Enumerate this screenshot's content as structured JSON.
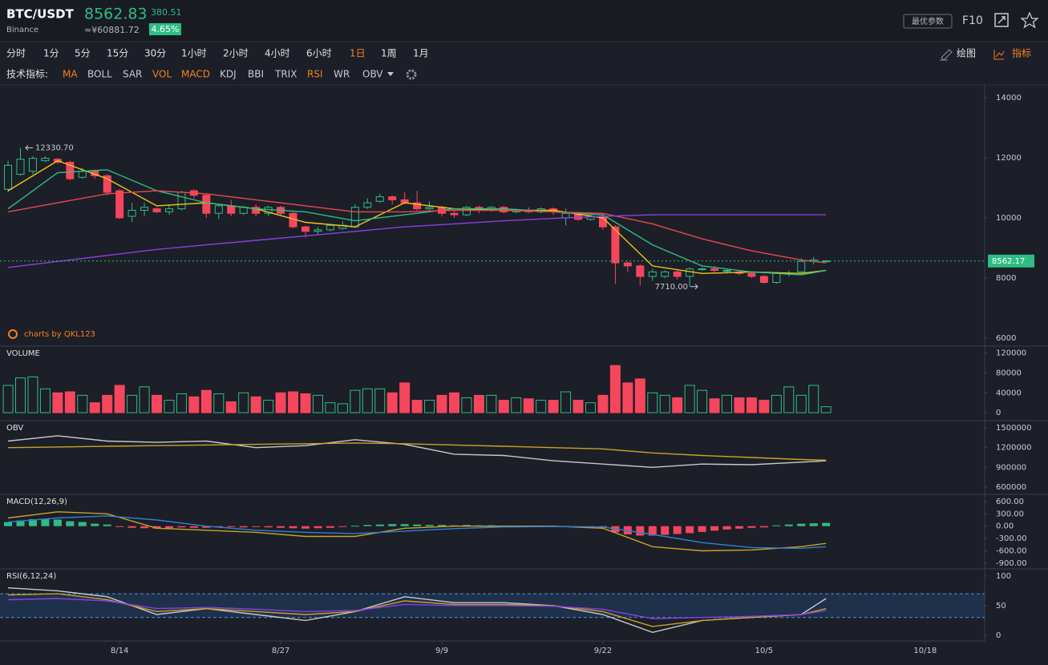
{
  "header": {
    "symbol": "BTC/USDT",
    "exchange": "Binance",
    "price": "8562.83",
    "change": "380.51",
    "cny": "≈¥60881.72",
    "change_pct": "4.65%",
    "params_button": "最优参数",
    "f10": "F10"
  },
  "intervals": {
    "items": [
      "分时",
      "1分",
      "5分",
      "15分",
      "30分",
      "1小时",
      "2小时",
      "4小时",
      "6小时",
      "1日",
      "1周",
      "1月"
    ],
    "active": 9,
    "draw": "绘图",
    "indicator": "指标"
  },
  "indicators": {
    "label": "技术指标:",
    "items": [
      "MA",
      "BOLL",
      "SAR",
      "VOL",
      "MACD",
      "KDJ",
      "BBI",
      "TRIX",
      "RSI",
      "WR",
      "OBV"
    ],
    "active": [
      0,
      3,
      4,
      8
    ]
  },
  "watermark": "charts by QKL123",
  "chart_data": [
    {
      "type": "candlestick",
      "up_color": "#2ebd85",
      "down_color": "#f6465d",
      "x": [
        0,
        1,
        2,
        3,
        4,
        5,
        6,
        7,
        8,
        9,
        10,
        11,
        12,
        13,
        14,
        15,
        16,
        17,
        18,
        19,
        20,
        21,
        22,
        23,
        24,
        25,
        26,
        27,
        28,
        29,
        30,
        31,
        32,
        33,
        34,
        35,
        36,
        37,
        38,
        39,
        40,
        41,
        42,
        43,
        44,
        45,
        46,
        47,
        48,
        49,
        50,
        51,
        52,
        53,
        54,
        55,
        56,
        57,
        58,
        59,
        60,
        61,
        62,
        63,
        64,
        65,
        66
      ],
      "open": [
        10950,
        11450,
        11550,
        11900,
        11950,
        11850,
        11350,
        11550,
        11400,
        10900,
        10050,
        10250,
        10300,
        10200,
        10300,
        10900,
        10750,
        10150,
        10400,
        10150,
        10350,
        10150,
        10350,
        10150,
        9700,
        9550,
        9600,
        9650,
        9700,
        10350,
        10550,
        10700,
        10600,
        10500,
        10300,
        10350,
        10150,
        10100,
        10350,
        10250,
        10350,
        10200,
        10250,
        10200,
        10300,
        10000,
        10150,
        9950,
        10050,
        9700,
        8500,
        8400,
        8050,
        8050,
        8200,
        8050,
        8300,
        8300,
        8250,
        8200,
        8150,
        8050,
        7850,
        8150,
        8200,
        8550,
        8560
      ],
      "high": [
        11900,
        12330.7,
        12050,
        12050,
        12000,
        11900,
        11650,
        11600,
        11450,
        10950,
        10500,
        10500,
        10350,
        10450,
        10900,
        10950,
        10800,
        10450,
        10600,
        10400,
        10450,
        10400,
        10400,
        10200,
        9750,
        9700,
        9800,
        9900,
        10450,
        10650,
        10800,
        10750,
        10850,
        10900,
        10550,
        10400,
        10250,
        10400,
        10400,
        10400,
        10400,
        10300,
        10350,
        10350,
        10350,
        10300,
        10200,
        10100,
        10100,
        9750,
        8550,
        8450,
        8300,
        8250,
        8250,
        8350,
        8350,
        8400,
        8300,
        8250,
        8200,
        8100,
        8200,
        8250,
        8650,
        8700,
        8600
      ],
      "low": [
        10850,
        11400,
        11450,
        11850,
        11800,
        11250,
        11300,
        11300,
        10750,
        9950,
        9850,
        10050,
        10150,
        10100,
        10250,
        10650,
        10000,
        9950,
        10050,
        10100,
        10050,
        10050,
        10100,
        9650,
        9350,
        9450,
        9550,
        9600,
        9650,
        10300,
        10500,
        10450,
        10450,
        10250,
        10250,
        10050,
        10000,
        10050,
        10150,
        10200,
        10150,
        10150,
        10150,
        10150,
        10100,
        9750,
        9900,
        9900,
        9600,
        7800,
        8200,
        7750,
        7900,
        8000,
        7950,
        7710,
        8250,
        8150,
        8150,
        8100,
        8000,
        7800,
        7800,
        8050,
        8150,
        8450,
        8530
      ],
      "close": [
        11750,
        11950,
        11980,
        11980,
        11850,
        11300,
        11550,
        11400,
        10850,
        10000,
        10250,
        10350,
        10200,
        10300,
        10850,
        10750,
        10150,
        10400,
        10150,
        10350,
        10150,
        10350,
        10150,
        9700,
        9550,
        9600,
        9750,
        9750,
        10350,
        10500,
        10700,
        10600,
        10500,
        10300,
        10350,
        10150,
        10100,
        10350,
        10250,
        10350,
        10200,
        10250,
        10200,
        10300,
        10200,
        10150,
        9950,
        10050,
        9700,
        8500,
        8400,
        8050,
        8200,
        8200,
        8050,
        8300,
        8300,
        8250,
        8250,
        8150,
        8050,
        7850,
        8150,
        8150,
        8550,
        8600,
        8565
      ],
      "lines": {
        "x": [
          0,
          4,
          8,
          12,
          16,
          20,
          24,
          28,
          32,
          36,
          40,
          44,
          48,
          52,
          56,
          60,
          64,
          66
        ],
        "series": [
          {
            "color": "#f0c419",
            "values": [
              10900,
              11900,
              11300,
              10400,
              10500,
              10300,
              9850,
              9700,
              10500,
              10300,
              10250,
              10250,
              10000,
              8400,
              8150,
              8200,
              8150,
              8250
            ]
          },
          {
            "color": "#2ebd85",
            "values": [
              10300,
              11500,
              11600,
              10900,
              10500,
              10300,
              10200,
              9900,
              10100,
              10300,
              10300,
              10200,
              10100,
              9100,
              8400,
              8200,
              8100,
              8250
            ]
          },
          {
            "color": "#e8484f",
            "values": [
              10200,
              10500,
              10800,
              10900,
              10800,
              10600,
              10400,
              10200,
              10200,
              10250,
              10250,
              10200,
              10150,
              9800,
              9300,
              8900,
              8600,
              8500
            ]
          },
          {
            "color": "#8b3fe6",
            "values": [
              8350,
              8550,
              8750,
              8950,
              9100,
              9250,
              9400,
              9550,
              9700,
              9800,
              9900,
              9980,
              10050,
              10100,
              10100,
              10100,
              10100,
              10100
            ]
          }
        ]
      },
      "annotations": [
        {
          "value": 12330.7,
          "label": "12330.70"
        },
        {
          "value": 7710,
          "label": "7710.00"
        }
      ],
      "last": 8562.17,
      "last_color": "#2ebd85",
      "ylim": [
        5730,
        14370
      ],
      "yticks": [
        6000,
        8000,
        10000,
        12000,
        14000
      ]
    },
    {
      "type": "bar",
      "title": "VOLUME",
      "x": [
        0,
        1,
        2,
        3,
        4,
        5,
        6,
        7,
        8,
        9,
        10,
        11,
        12,
        13,
        14,
        15,
        16,
        17,
        18,
        19,
        20,
        21,
        22,
        23,
        24,
        25,
        26,
        27,
        28,
        29,
        30,
        31,
        32,
        33,
        34,
        35,
        36,
        37,
        38,
        39,
        40,
        41,
        42,
        43,
        44,
        45,
        46,
        47,
        48,
        49,
        50,
        51,
        52,
        53,
        54,
        55,
        56,
        57,
        58,
        59,
        60,
        61,
        62,
        63,
        64,
        65,
        66
      ],
      "values": [
        55000,
        70000,
        72000,
        48000,
        40000,
        42000,
        35000,
        20000,
        35000,
        55000,
        35000,
        52000,
        35000,
        25000,
        38000,
        32000,
        45000,
        38000,
        22000,
        40000,
        32000,
        25000,
        40000,
        42000,
        38000,
        35000,
        20000,
        18000,
        45000,
        48000,
        48000,
        40000,
        60000,
        25000,
        25000,
        35000,
        40000,
        30000,
        35000,
        35000,
        25000,
        30000,
        28000,
        25000,
        25000,
        42000,
        25000,
        20000,
        35000,
        95000,
        60000,
        68000,
        40000,
        35000,
        30000,
        55000,
        45000,
        28000,
        35000,
        30000,
        30000,
        25000,
        35000,
        52000,
        35000,
        55000,
        12000
      ],
      "ylim": [
        -16000,
        134000
      ],
      "yticks": [
        0,
        40000,
        80000,
        120000
      ]
    },
    {
      "type": "line",
      "title": "OBV",
      "x": [
        0,
        4,
        8,
        12,
        16,
        20,
        24,
        28,
        32,
        36,
        40,
        44,
        48,
        52,
        56,
        60,
        64,
        66
      ],
      "series": [
        {
          "color": "#c8c8c8",
          "values": [
            1300000,
            1380000,
            1300000,
            1280000,
            1300000,
            1200000,
            1230000,
            1320000,
            1250000,
            1100000,
            1080000,
            1000000,
            950000,
            900000,
            950000,
            940000,
            980000,
            1000000
          ]
        },
        {
          "color": "#c9a227",
          "values": [
            1200000,
            1210000,
            1220000,
            1230000,
            1240000,
            1250000,
            1260000,
            1270000,
            1260000,
            1240000,
            1220000,
            1200000,
            1180000,
            1120000,
            1080000,
            1050000,
            1020000,
            1010000
          ]
        }
      ],
      "ylim": [
        490000,
        1610000
      ],
      "yticks": [
        600000,
        900000,
        1200000,
        1500000
      ]
    },
    {
      "type": "macd",
      "title": "MACD(12,26,9)",
      "x": [
        0,
        4,
        8,
        12,
        16,
        20,
        24,
        28,
        32,
        36,
        40,
        44,
        48,
        52,
        56,
        60,
        64,
        66
      ],
      "series": [
        {
          "color": "#c9a227",
          "values": [
            200,
            350,
            300,
            -50,
            -100,
            -150,
            -250,
            -250,
            -50,
            0,
            0,
            0,
            -50,
            -500,
            -600,
            -580,
            -500,
            -420
          ]
        },
        {
          "color": "#2f7fd8",
          "values": [
            100,
            200,
            250,
            150,
            0,
            -100,
            -150,
            -180,
            -120,
            -60,
            -20,
            -10,
            -20,
            -200,
            -400,
            -520,
            -540,
            -500
          ]
        }
      ],
      "histogram": {
        "x": [
          0,
          1,
          2,
          3,
          4,
          5,
          6,
          7,
          8,
          9,
          10,
          11,
          12,
          13,
          14,
          15,
          16,
          17,
          18,
          19,
          20,
          21,
          22,
          23,
          24,
          25,
          26,
          27,
          28,
          29,
          30,
          31,
          32,
          33,
          34,
          35,
          36,
          37,
          38,
          39,
          40,
          41,
          42,
          43,
          44,
          45,
          46,
          47,
          48,
          49,
          50,
          51,
          52,
          53,
          54,
          55,
          56,
          57,
          58,
          59,
          60,
          61,
          62,
          63,
          64,
          65,
          66
        ],
        "values": [
          100,
          140,
          170,
          180,
          160,
          120,
          100,
          60,
          40,
          -20,
          -40,
          -50,
          -60,
          -50,
          -30,
          -40,
          -40,
          -30,
          -20,
          -30,
          -20,
          -30,
          -40,
          -50,
          -60,
          -50,
          -40,
          -20,
          10,
          30,
          40,
          50,
          50,
          40,
          30,
          30,
          20,
          30,
          20,
          20,
          10,
          10,
          10,
          10,
          10,
          5,
          -10,
          -20,
          -40,
          -150,
          -200,
          -230,
          -230,
          -210,
          -190,
          -170,
          -140,
          -110,
          -80,
          -60,
          -40,
          -30,
          20,
          40,
          60,
          70,
          80
        ]
      },
      "ylim": [
        -1040,
        775
      ],
      "yticks": [
        {
          "value": 600,
          "label": "600.00"
        },
        {
          "value": 300,
          "label": "300.00"
        },
        {
          "value": 0,
          "label": "0.00"
        },
        {
          "value": -300,
          "label": "-300.00"
        },
        {
          "value": -600,
          "label": "-600.00"
        },
        {
          "value": -900,
          "label": "-900.00"
        }
      ]
    },
    {
      "type": "line",
      "title": "RSI(6,12,24)",
      "x": [
        0,
        4,
        8,
        12,
        16,
        20,
        24,
        28,
        32,
        36,
        40,
        44,
        48,
        52,
        56,
        60,
        64,
        66
      ],
      "series": [
        {
          "color": "#c8c8c8",
          "values": [
            80,
            75,
            65,
            35,
            45,
            35,
            25,
            40,
            65,
            55,
            55,
            50,
            35,
            5,
            25,
            30,
            35,
            62
          ]
        },
        {
          "color": "#c9a227",
          "values": [
            68,
            70,
            60,
            40,
            45,
            40,
            35,
            40,
            58,
            52,
            52,
            50,
            40,
            15,
            25,
            30,
            35,
            45
          ]
        },
        {
          "color": "#8b3fe6",
          "values": [
            60,
            62,
            58,
            45,
            47,
            44,
            40,
            42,
            52,
            50,
            50,
            49,
            44,
            28,
            30,
            32,
            35,
            42
          ]
        }
      ],
      "band": [
        30,
        70
      ],
      "ylim": [
        -9.5,
        112
      ],
      "yticks": [
        0,
        50,
        100
      ],
      "xlim": [
        -0.65,
        78.8
      ],
      "xticks": [
        {
          "value": 9,
          "label": "8/14"
        },
        {
          "value": 22,
          "label": "8/27"
        },
        {
          "value": 35,
          "label": "9/9"
        },
        {
          "value": 48,
          "label": "9/22"
        },
        {
          "value": 61,
          "label": "10/5"
        },
        {
          "value": 74,
          "label": "10/18"
        }
      ]
    }
  ]
}
